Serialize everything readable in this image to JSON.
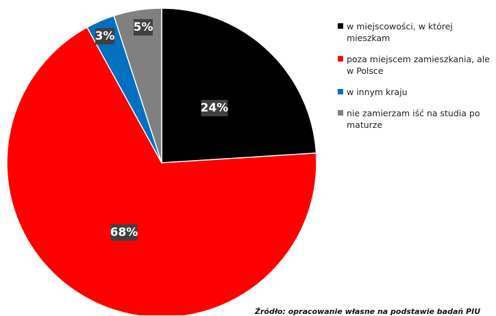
{
  "chart_data": {
    "type": "pie",
    "title": "",
    "slices": [
      {
        "label": "w miejscowości, w której mieszkam",
        "value": 24,
        "data_label": "24%",
        "color": "#000000"
      },
      {
        "label": "poza miejscem zamieszkania, ale w Polsce",
        "value": 68,
        "data_label": "68%",
        "color": "#ff0000"
      },
      {
        "label": "w innym kraju",
        "value": 3,
        "data_label": "3%",
        "color": "#0070c0"
      },
      {
        "label": "nie zamierzam iść na studia po maturze",
        "value": 5,
        "data_label": "5%",
        "color": "#808080"
      }
    ],
    "legend_position": "right",
    "data_label_style": {
      "background": "#404040",
      "color": "#ffffff"
    }
  },
  "source_note": "Źródło: opracowanie własne na podstawie badań PIU"
}
